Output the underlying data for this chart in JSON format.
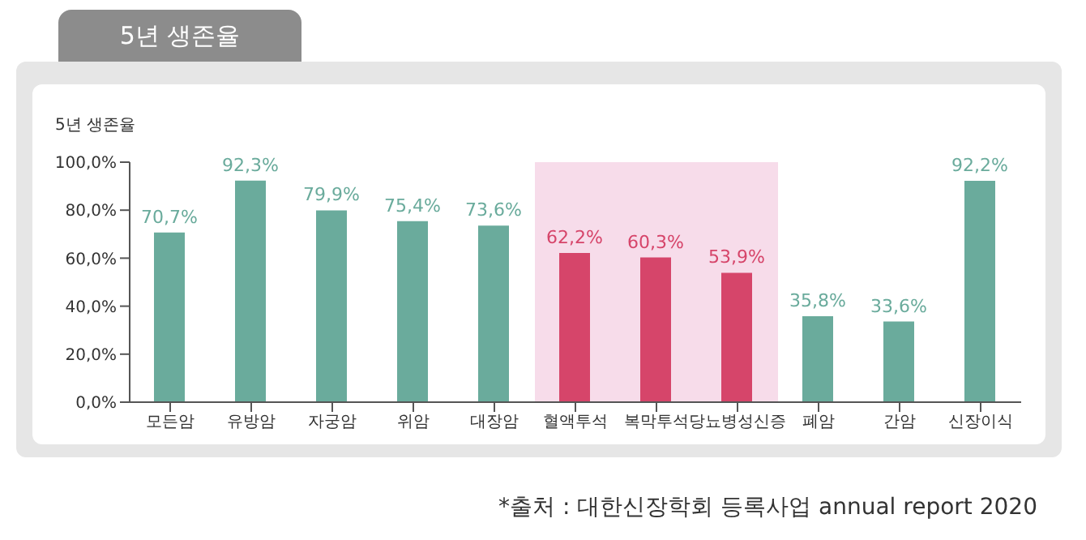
{
  "chart_data": {
    "type": "bar",
    "title": "5년 생존율",
    "ylabel": "5년 생존율",
    "categories": [
      "모든암",
      "유방암",
      "자궁암",
      "위암",
      "대장암",
      "혈액투석",
      "복막투석",
      "당뇨병성신증",
      "폐암",
      "간암",
      "신장이식"
    ],
    "values": [
      70.7,
      92.3,
      79.9,
      75.4,
      73.6,
      62.2,
      60.3,
      53.9,
      35.8,
      33.6,
      92.2
    ],
    "colors": [
      "#6aab9c",
      "#6aab9c",
      "#6aab9c",
      "#6aab9c",
      "#6aab9c",
      "#d6456a",
      "#d6456a",
      "#d6456a",
      "#6aab9c",
      "#6aab9c",
      "#6aab9c"
    ],
    "value_labels": [
      "70,7%",
      "92,3%",
      "79,9%",
      "75,4%",
      "73,6%",
      "62,2%",
      "60,3%",
      "53,9%",
      "35,8%",
      "33,6%",
      "92,2%"
    ],
    "ylim": [
      0,
      100
    ],
    "yticks": [
      {
        "value": 0,
        "label": "0,0%"
      },
      {
        "value": 20,
        "label": "20,0%"
      },
      {
        "value": 40,
        "label": "40,0%"
      },
      {
        "value": 60,
        "label": "60,0%"
      },
      {
        "value": 80,
        "label": "80,0%"
      },
      {
        "value": 100,
        "label": "100,0%"
      }
    ],
    "bands": [
      {
        "axis": "x",
        "from": "혈액투석",
        "to": "당뇨병성신증",
        "color": "#f7dcea"
      }
    ],
    "grid": false,
    "legend": false,
    "annotations": [
      "*출처 : 대한신장학회 등록사업 annual report 2020"
    ]
  }
}
